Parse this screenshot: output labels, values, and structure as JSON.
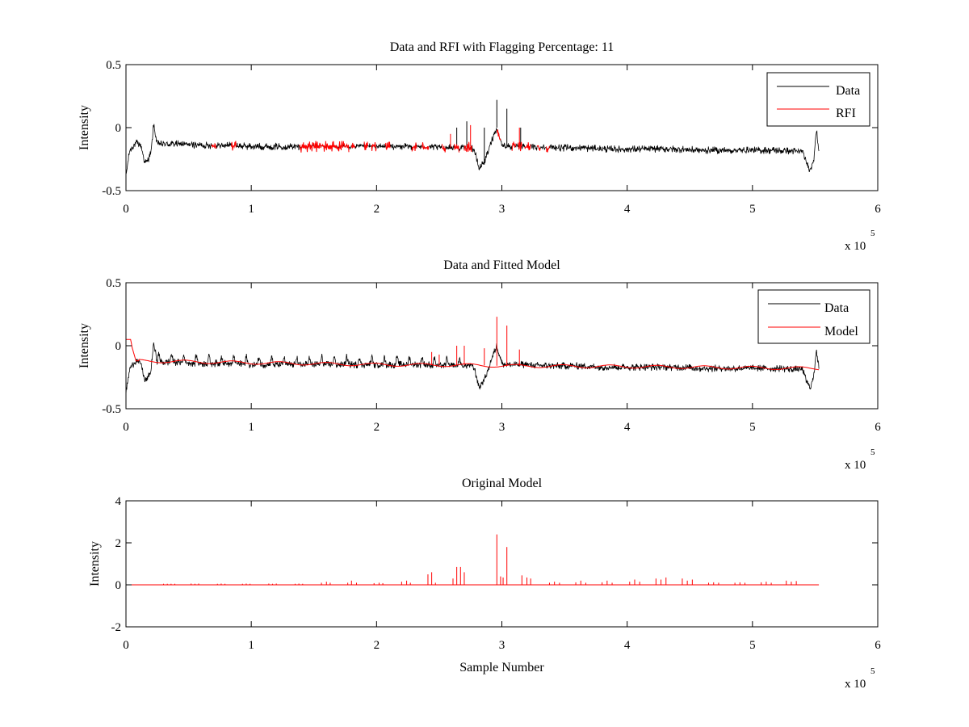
{
  "figure": {
    "background": "#ffffff",
    "colors": {
      "data": "#000000",
      "rfi": "#ff0000",
      "model": "#ff0000",
      "axis": "#000000"
    }
  },
  "chart_data": [
    {
      "id": "p1",
      "type": "line",
      "title": "Data and RFI with Flagging Percentage: 11",
      "xlabel": "",
      "ylabel": "Intensity",
      "xlim": [
        0,
        600000
      ],
      "ylim": [
        -0.5,
        0.5
      ],
      "xticks": [
        0,
        100000,
        200000,
        300000,
        400000,
        500000,
        600000
      ],
      "xtick_labels": [
        "0",
        "1",
        "2",
        "3",
        "4",
        "5",
        "6"
      ],
      "yticks": [
        -0.5,
        0,
        0.5
      ],
      "ytick_labels": [
        "-0.5",
        "0",
        "0.5"
      ],
      "x_multiplier": {
        "base": "x 10",
        "exponent": "5"
      },
      "legend": {
        "placement": "top-right",
        "entries": [
          {
            "label": "Data",
            "color": "#000000"
          },
          {
            "label": "RFI",
            "color": "#ff0000"
          }
        ]
      },
      "series": [
        {
          "name": "Data",
          "color": "#000000",
          "x": [
            0,
            3000,
            8000,
            12000,
            15000,
            17000,
            20000,
            22000,
            25000,
            40000,
            60000,
            80000,
            100000,
            120000,
            140000,
            160000,
            180000,
            200000,
            220000,
            240000,
            260000,
            270000,
            275000,
            278000,
            282000,
            287000,
            292000,
            296000,
            300000,
            305000,
            320000,
            340000,
            360000,
            380000,
            400000,
            420000,
            440000,
            460000,
            480000,
            500000,
            520000,
            540000,
            543000,
            546000,
            549000,
            551000,
            553000
          ],
          "y": [
            -0.38,
            -0.18,
            -0.12,
            -0.14,
            -0.28,
            -0.27,
            -0.2,
            0.02,
            -0.13,
            -0.13,
            -0.14,
            -0.14,
            -0.15,
            -0.15,
            -0.15,
            -0.15,
            -0.15,
            -0.15,
            -0.15,
            -0.15,
            -0.16,
            -0.16,
            -0.15,
            -0.18,
            -0.33,
            -0.25,
            -0.1,
            0.0,
            -0.14,
            -0.15,
            -0.15,
            -0.16,
            -0.16,
            -0.17,
            -0.17,
            -0.17,
            -0.17,
            -0.18,
            -0.18,
            -0.18,
            -0.18,
            -0.19,
            -0.28,
            -0.34,
            -0.24,
            -0.02,
            -0.18
          ],
          "noise_amplitude": 0.03,
          "spikes": [
            {
              "x": 296000,
              "y": 0.22
            },
            {
              "x": 304000,
              "y": 0.15
            },
            {
              "x": 272000,
              "y": 0.05
            },
            {
              "x": 264000,
              "y": 0.0
            },
            {
              "x": 286000,
              "y": 0.0
            },
            {
              "x": 315000,
              "y": 0.0
            }
          ]
        },
        {
          "name": "RFI",
          "color": "#ff0000",
          "flagged_ranges": [
            [
              68000,
              72000
            ],
            [
              84000,
              88000
            ],
            [
              138000,
              178000
            ],
            [
              180000,
              183000
            ],
            [
              190000,
              193000
            ],
            [
              196000,
              200000
            ],
            [
              207000,
              211000
            ],
            [
              228000,
              232000
            ],
            [
              236000,
              242000
            ],
            [
              252000,
              255000
            ],
            [
              262000,
              266000
            ],
            [
              270000,
              276000
            ],
            [
              296000,
              299000
            ],
            [
              308000,
              311000
            ],
            [
              313000,
              316000
            ],
            [
              318000,
              323000
            ],
            [
              328000,
              331000
            ],
            [
              335000,
              338000
            ]
          ],
          "flagged_spikes": [
            {
              "x": 259000,
              "y": -0.05
            },
            {
              "x": 275000,
              "y": 0.02
            },
            {
              "x": 314000,
              "y": 0.0
            }
          ]
        }
      ]
    },
    {
      "id": "p2",
      "type": "line",
      "title": "Data and Fitted Model",
      "xlabel": "",
      "ylabel": "Intensity",
      "xlim": [
        0,
        600000
      ],
      "ylim": [
        -0.5,
        0.5
      ],
      "xticks": [
        0,
        100000,
        200000,
        300000,
        400000,
        500000,
        600000
      ],
      "xtick_labels": [
        "0",
        "1",
        "2",
        "3",
        "4",
        "5",
        "6"
      ],
      "yticks": [
        -0.5,
        0,
        0.5
      ],
      "ytick_labels": [
        "-0.5",
        "0",
        "0.5"
      ],
      "x_multiplier": {
        "base": "x 10",
        "exponent": "5"
      },
      "legend": {
        "placement": "top-right",
        "entries": [
          {
            "label": "Data",
            "color": "#000000"
          },
          {
            "label": "Model",
            "color": "#ff0000"
          }
        ]
      },
      "series": [
        {
          "name": "Data",
          "color": "#000000",
          "x": [
            0,
            3000,
            8000,
            12000,
            15000,
            17000,
            20000,
            22000,
            25000,
            40000,
            60000,
            80000,
            100000,
            120000,
            140000,
            160000,
            180000,
            200000,
            220000,
            240000,
            260000,
            270000,
            275000,
            278000,
            282000,
            287000,
            292000,
            296000,
            300000,
            305000,
            320000,
            340000,
            360000,
            380000,
            400000,
            420000,
            440000,
            460000,
            480000,
            500000,
            520000,
            540000,
            543000,
            546000,
            549000,
            551000,
            553000
          ],
          "y": [
            -0.38,
            -0.18,
            -0.12,
            -0.14,
            -0.28,
            -0.27,
            -0.2,
            0.02,
            -0.13,
            -0.13,
            -0.14,
            -0.14,
            -0.15,
            -0.15,
            -0.15,
            -0.15,
            -0.15,
            -0.15,
            -0.15,
            -0.15,
            -0.16,
            -0.16,
            -0.15,
            -0.18,
            -0.33,
            -0.25,
            -0.1,
            0.0,
            -0.14,
            -0.15,
            -0.15,
            -0.16,
            -0.16,
            -0.17,
            -0.17,
            -0.17,
            -0.17,
            -0.18,
            -0.18,
            -0.18,
            -0.18,
            -0.19,
            -0.28,
            -0.34,
            -0.24,
            -0.02,
            -0.18
          ],
          "noise_amplitude": 0.03,
          "bump_spacing": 10000,
          "bump_height": 0.06
        },
        {
          "name": "Model",
          "color": "#ff0000",
          "x": [
            0,
            4000,
            4500,
            8000,
            100000,
            200000,
            280000,
            300000,
            400000,
            500000,
            553000
          ],
          "y": [
            0.05,
            0.05,
            0.0,
            -0.12,
            -0.135,
            -0.15,
            -0.155,
            -0.16,
            -0.165,
            -0.175,
            -0.18
          ],
          "spikes": [
            {
              "x": 296000,
              "y": 0.23
            },
            {
              "x": 304000,
              "y": 0.16
            },
            {
              "x": 264000,
              "y": 0.0
            },
            {
              "x": 270000,
              "y": 0.0
            },
            {
              "x": 244000,
              "y": -0.05
            },
            {
              "x": 250000,
              "y": -0.07
            },
            {
              "x": 286000,
              "y": -0.02
            },
            {
              "x": 314000,
              "y": -0.03
            }
          ]
        }
      ]
    },
    {
      "id": "p3",
      "type": "line",
      "title": "Original Model",
      "xlabel": "Sample Number",
      "ylabel": "Intensity",
      "xlim": [
        0,
        600000
      ],
      "ylim": [
        -2,
        4
      ],
      "xticks": [
        0,
        100000,
        200000,
        300000,
        400000,
        500000,
        600000
      ],
      "xtick_labels": [
        "0",
        "1",
        "2",
        "3",
        "4",
        "5",
        "6"
      ],
      "yticks": [
        -2,
        0,
        2,
        4
      ],
      "ytick_labels": [
        "-2",
        "0",
        "2",
        "4"
      ],
      "x_multiplier": {
        "base": "x 10",
        "exponent": "5"
      },
      "series": [
        {
          "name": "Original Model",
          "color": "#ff0000",
          "baseline": 0,
          "x_end": 553000,
          "spikes": [
            {
              "x": 30000,
              "y": 0.05
            },
            {
              "x": 33000,
              "y": 0.05
            },
            {
              "x": 36000,
              "y": 0.05
            },
            {
              "x": 39000,
              "y": 0.05
            },
            {
              "x": 52000,
              "y": 0.06
            },
            {
              "x": 55000,
              "y": 0.05
            },
            {
              "x": 58000,
              "y": 0.06
            },
            {
              "x": 73000,
              "y": 0.05
            },
            {
              "x": 76000,
              "y": 0.06
            },
            {
              "x": 79000,
              "y": 0.05
            },
            {
              "x": 93000,
              "y": 0.05
            },
            {
              "x": 96000,
              "y": 0.06
            },
            {
              "x": 99000,
              "y": 0.05
            },
            {
              "x": 114000,
              "y": 0.06
            },
            {
              "x": 117000,
              "y": 0.05
            },
            {
              "x": 120000,
              "y": 0.06
            },
            {
              "x": 135000,
              "y": 0.05
            },
            {
              "x": 138000,
              "y": 0.06
            },
            {
              "x": 141000,
              "y": 0.05
            },
            {
              "x": 156000,
              "y": 0.1
            },
            {
              "x": 160000,
              "y": 0.15
            },
            {
              "x": 163000,
              "y": 0.1
            },
            {
              "x": 177000,
              "y": 0.1
            },
            {
              "x": 180000,
              "y": 0.2
            },
            {
              "x": 184000,
              "y": 0.1
            },
            {
              "x": 198000,
              "y": 0.08
            },
            {
              "x": 202000,
              "y": 0.1
            },
            {
              "x": 205000,
              "y": 0.08
            },
            {
              "x": 220000,
              "y": 0.15
            },
            {
              "x": 224000,
              "y": 0.2
            },
            {
              "x": 227000,
              "y": 0.1
            },
            {
              "x": 241000,
              "y": 0.5
            },
            {
              "x": 244000,
              "y": 0.6
            },
            {
              "x": 247000,
              "y": 0.1
            },
            {
              "x": 261000,
              "y": 0.3
            },
            {
              "x": 264000,
              "y": 0.85
            },
            {
              "x": 267000,
              "y": 0.85
            },
            {
              "x": 270000,
              "y": 0.6
            },
            {
              "x": 296000,
              "y": 2.4
            },
            {
              "x": 299000,
              "y": 0.4
            },
            {
              "x": 301000,
              "y": 0.35
            },
            {
              "x": 304000,
              "y": 1.8
            },
            {
              "x": 316000,
              "y": 0.45
            },
            {
              "x": 320000,
              "y": 0.35
            },
            {
              "x": 323000,
              "y": 0.3
            },
            {
              "x": 338000,
              "y": 0.1
            },
            {
              "x": 342000,
              "y": 0.15
            },
            {
              "x": 346000,
              "y": 0.1
            },
            {
              "x": 359000,
              "y": 0.12
            },
            {
              "x": 363000,
              "y": 0.2
            },
            {
              "x": 367000,
              "y": 0.1
            },
            {
              "x": 380000,
              "y": 0.12
            },
            {
              "x": 384000,
              "y": 0.2
            },
            {
              "x": 388000,
              "y": 0.1
            },
            {
              "x": 402000,
              "y": 0.15
            },
            {
              "x": 406000,
              "y": 0.25
            },
            {
              "x": 410000,
              "y": 0.15
            },
            {
              "x": 423000,
              "y": 0.3
            },
            {
              "x": 427000,
              "y": 0.25
            },
            {
              "x": 431000,
              "y": 0.35
            },
            {
              "x": 444000,
              "y": 0.3
            },
            {
              "x": 448000,
              "y": 0.2
            },
            {
              "x": 452000,
              "y": 0.25
            },
            {
              "x": 465000,
              "y": 0.1
            },
            {
              "x": 469000,
              "y": 0.12
            },
            {
              "x": 473000,
              "y": 0.1
            },
            {
              "x": 486000,
              "y": 0.1
            },
            {
              "x": 490000,
              "y": 0.12
            },
            {
              "x": 494000,
              "y": 0.1
            },
            {
              "x": 507000,
              "y": 0.12
            },
            {
              "x": 511000,
              "y": 0.15
            },
            {
              "x": 515000,
              "y": 0.1
            },
            {
              "x": 527000,
              "y": 0.2
            },
            {
              "x": 531000,
              "y": 0.15
            },
            {
              "x": 535000,
              "y": 0.18
            }
          ]
        }
      ]
    }
  ]
}
